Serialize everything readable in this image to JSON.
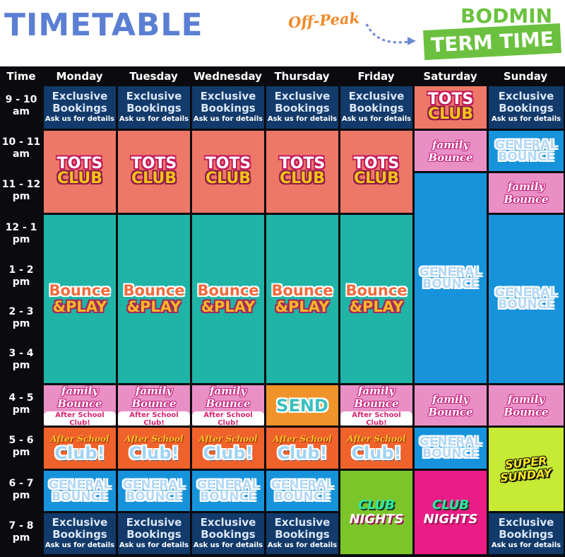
{
  "header": {
    "title": "TIMETABLE",
    "offpeak": "Off-Peak",
    "location": "BODMIN",
    "term": "TERM TIME"
  },
  "columns": [
    "Time",
    "Monday",
    "Tuesday",
    "Wednesday",
    "Thursday",
    "Friday",
    "Saturday",
    "Sunday"
  ],
  "times": [
    {
      "l1": "9 - 10",
      "l2": "am"
    },
    {
      "l1": "10 - 11",
      "l2": "am"
    },
    {
      "l1": "11 - 12",
      "l2": "pm"
    },
    {
      "l1": "12 - 1",
      "l2": "pm"
    },
    {
      "l1": "1 - 2",
      "l2": "pm"
    },
    {
      "l1": "2 - 3",
      "l2": "pm"
    },
    {
      "l1": "3 - 4",
      "l2": "pm"
    },
    {
      "l1": "4 - 5",
      "l2": "pm"
    },
    {
      "l1": "5 - 6",
      "l2": "pm"
    },
    {
      "l1": "6 - 7",
      "l2": "pm"
    },
    {
      "l1": "7 - 8",
      "l2": "pm"
    }
  ],
  "labels": {
    "exclusive_l1": "Exclusive",
    "exclusive_l2": "Bookings",
    "exclusive_l3": "Ask us for details",
    "tots_l1": "TOTS",
    "tots_l2": "CLUB",
    "bounce_l1": "Bounce",
    "bounce_l2": "&PLAY",
    "family": "family Bounce",
    "after_school_small": "After School Club!",
    "general_l1": "GENERAL",
    "general_l2": "BOUNCE",
    "send": "SEND",
    "after_l1": "After School",
    "after_l2": "Club!",
    "club_l1": "CLUB",
    "club_l2": "NIGHTS",
    "super_l1": "SUPER",
    "super_l2": "SUNDAY"
  },
  "colors": {
    "title": "#5b7fd3",
    "offpeak": "#f08a2a",
    "term_green": "#6bc13f",
    "exclusive": "#123a6a",
    "tots": "#ee7867",
    "bounce_play": "#1fb4a6",
    "family": "#e98fc6",
    "general": "#1793dc",
    "send": "#f0932a",
    "after_school": "#f0622b",
    "club_nights_fri": "#7bc52b",
    "club_nights_sat": "#ea1c86",
    "super_sunday": "#c7ea35"
  }
}
